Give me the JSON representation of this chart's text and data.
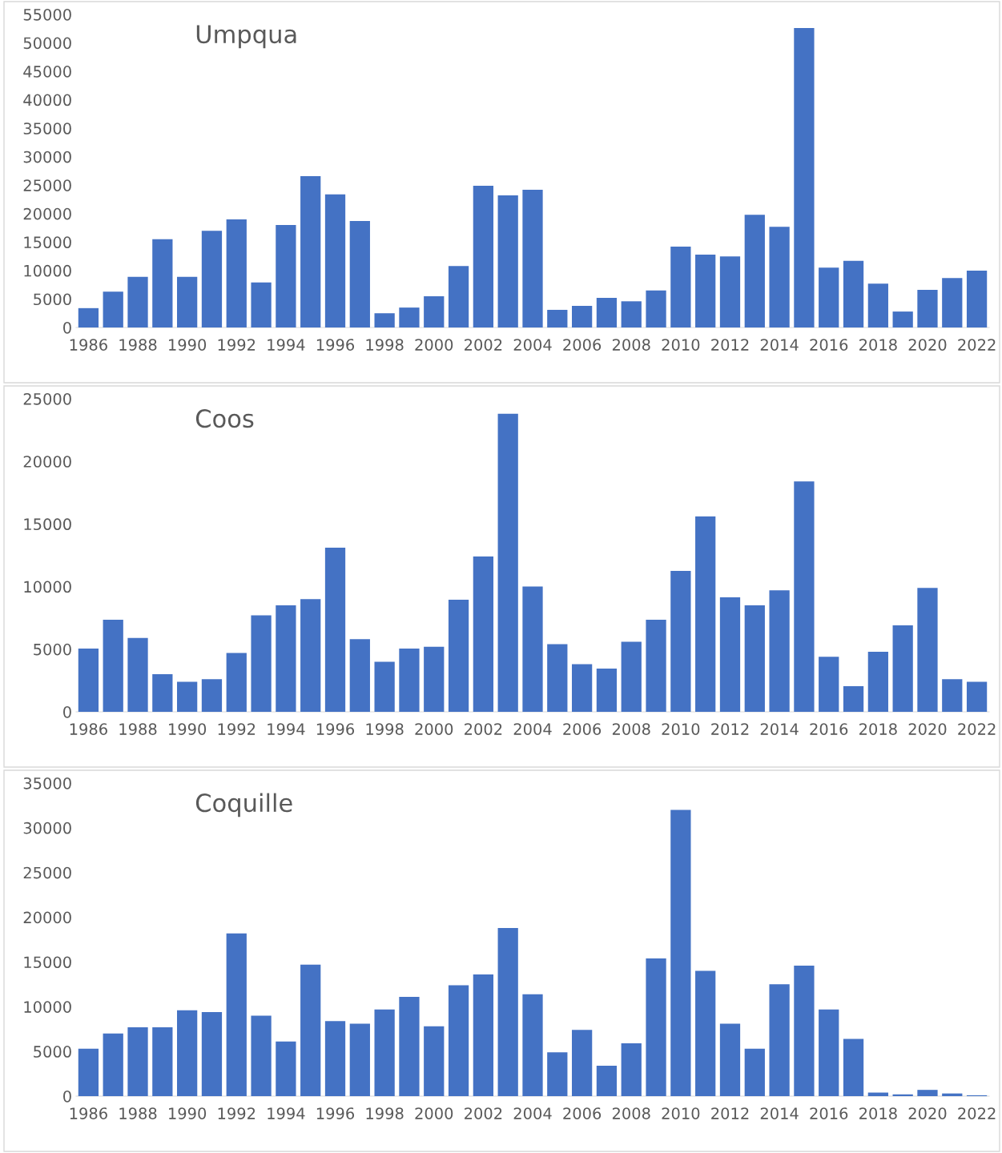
{
  "chart_data": [
    {
      "type": "bar",
      "title": "Umpqua",
      "categories": [
        "1986",
        null,
        "1988",
        null,
        "1990",
        null,
        "1992",
        null,
        "1994",
        null,
        "1996",
        null,
        "1998",
        null,
        "2000",
        null,
        "2002",
        null,
        "2004",
        null,
        "2006",
        null,
        "2008",
        null,
        "2010",
        null,
        "2012",
        null,
        "2014",
        null,
        "2016",
        null,
        "2018",
        null,
        "2020",
        null,
        "2022"
      ],
      "values": [
        3400,
        6300,
        8900,
        15500,
        8900,
        17000,
        19000,
        7900,
        18000,
        26600,
        23400,
        18700,
        2500,
        3500,
        5500,
        10800,
        24900,
        23200,
        24200,
        3100,
        3800,
        5200,
        4600,
        6500,
        14200,
        12800,
        12500,
        19800,
        17700,
        52600,
        10500,
        11700,
        7700,
        2800,
        6600,
        8700,
        10000
      ],
      "color": "#4472c4",
      "ylim": [
        0,
        55000
      ],
      "yticks": [
        0,
        5000,
        10000,
        15000,
        20000,
        25000,
        30000,
        35000,
        40000,
        45000,
        50000,
        55000
      ],
      "grid": false,
      "legend": false
    },
    {
      "type": "bar",
      "title": "Coos",
      "categories": [
        "1986",
        null,
        "1988",
        null,
        "1990",
        null,
        "1992",
        null,
        "1994",
        null,
        "1996",
        null,
        "1998",
        null,
        "2000",
        null,
        "2002",
        null,
        "2004",
        null,
        "2006",
        null,
        "2008",
        null,
        "2010",
        null,
        "2012",
        null,
        "2014",
        null,
        "2016",
        null,
        "2018",
        null,
        "2020",
        null,
        "2022"
      ],
      "values": [
        5050,
        7350,
        5900,
        3000,
        2400,
        2600,
        4700,
        7700,
        8500,
        9000,
        13100,
        5800,
        4000,
        5050,
        5200,
        8950,
        12400,
        23800,
        10000,
        5400,
        3800,
        3450,
        5600,
        7350,
        11250,
        15600,
        9150,
        8500,
        9700,
        18400,
        4400,
        2050,
        4800,
        6900,
        9900,
        2600,
        2400
      ],
      "color": "#4472c4",
      "ylim": [
        0,
        25000
      ],
      "yticks": [
        0,
        5000,
        10000,
        15000,
        20000,
        25000
      ],
      "grid": false,
      "legend": false
    },
    {
      "type": "bar",
      "title": "Coquille",
      "categories": [
        "1986",
        null,
        "1988",
        null,
        "1990",
        null,
        "1992",
        null,
        "1994",
        null,
        "1996",
        null,
        "1998",
        null,
        "2000",
        null,
        "2002",
        null,
        "2004",
        null,
        "2006",
        null,
        "2008",
        null,
        "2010",
        null,
        "2012",
        null,
        "2014",
        null,
        "2016",
        null,
        "2018",
        null,
        "2020",
        null,
        "2022"
      ],
      "values": [
        5300,
        7000,
        7700,
        7700,
        9600,
        9400,
        18200,
        9000,
        6100,
        14700,
        8400,
        8100,
        9700,
        11100,
        7800,
        12400,
        13600,
        18800,
        11400,
        4900,
        7400,
        3400,
        5900,
        15400,
        32000,
        14000,
        8100,
        5300,
        12500,
        14600,
        9700,
        6400,
        400,
        200,
        700,
        300,
        100
      ],
      "color": "#4472c4",
      "ylim": [
        0,
        35000
      ],
      "yticks": [
        0,
        5000,
        10000,
        15000,
        20000,
        25000,
        30000,
        35000
      ],
      "grid": false,
      "legend": false
    }
  ]
}
